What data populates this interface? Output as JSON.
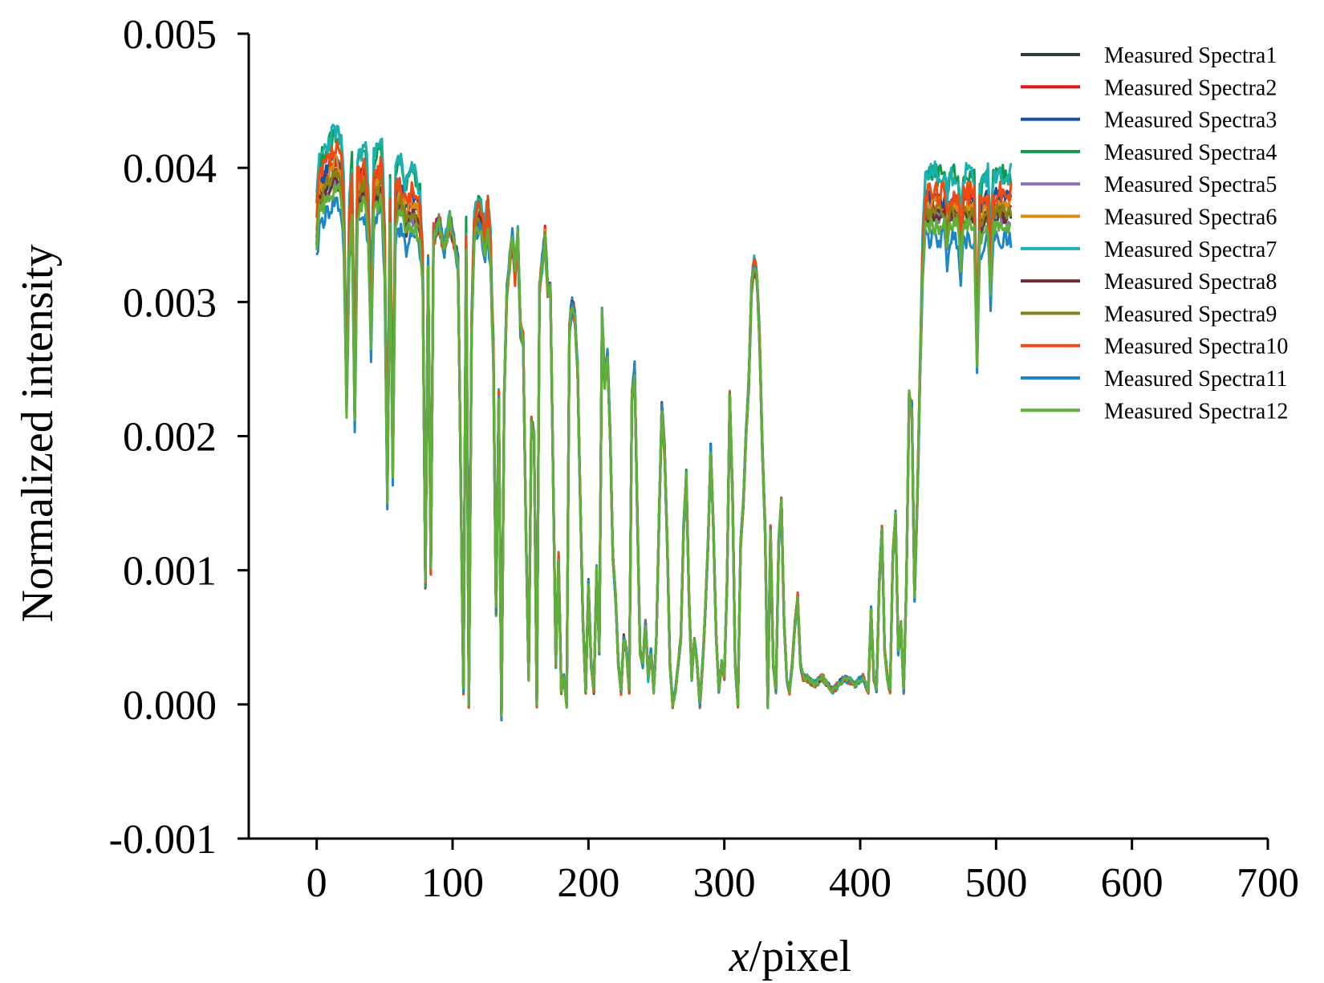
{
  "chart_data": {
    "type": "line",
    "xlabel_italic": "x",
    "xlabel_rest": "/pixel",
    "ylabel": "Normalized intensity",
    "xlim": [
      -50,
      700
    ],
    "ylim": [
      -0.001,
      0.005
    ],
    "x_ticks": [
      0,
      100,
      200,
      300,
      400,
      500,
      600,
      700
    ],
    "x_tick_labels": [
      "0",
      "100",
      "200",
      "300",
      "400",
      "500",
      "600",
      "700"
    ],
    "y_ticks": [
      -0.001,
      0.0,
      0.001,
      0.002,
      0.003,
      0.004,
      0.005
    ],
    "y_tick_labels": [
      "-0.001",
      "0.000",
      "0.001",
      "0.002",
      "0.003",
      "0.004",
      "0.005"
    ],
    "grid": false,
    "legend_position": "top-right",
    "x_step": 1,
    "x_start": 0,
    "x_end": 511,
    "base_profile": [
      [
        0,
        0.0034
      ],
      [
        2,
        0.0037
      ],
      [
        8,
        0.0038
      ],
      [
        14,
        0.0039
      ],
      [
        18,
        0.0038
      ],
      [
        20,
        0.0035
      ],
      [
        22,
        0.0022
      ],
      [
        24,
        0.0034
      ],
      [
        26,
        0.0037
      ],
      [
        28,
        0.0021
      ],
      [
        30,
        0.0037
      ],
      [
        36,
        0.0038
      ],
      [
        38,
        0.0035
      ],
      [
        40,
        0.0027
      ],
      [
        42,
        0.0037
      ],
      [
        48,
        0.0038
      ],
      [
        50,
        0.0033
      ],
      [
        52,
        0.0015
      ],
      [
        54,
        0.0036
      ],
      [
        56,
        0.0017
      ],
      [
        58,
        0.0036
      ],
      [
        62,
        0.0037
      ],
      [
        66,
        0.0035
      ],
      [
        68,
        0.0036
      ],
      [
        72,
        0.0036
      ],
      [
        76,
        0.0035
      ],
      [
        78,
        0.0032
      ],
      [
        80,
        0.0009
      ],
      [
        82,
        0.0033
      ],
      [
        84,
        0.001
      ],
      [
        86,
        0.0035
      ],
      [
        90,
        0.0036
      ],
      [
        94,
        0.0034
      ],
      [
        98,
        0.0036
      ],
      [
        100,
        0.0035
      ],
      [
        104,
        0.0033
      ],
      [
        106,
        0.0017
      ],
      [
        108,
        0.0001
      ],
      [
        110,
        0.0034
      ],
      [
        112,
        0.0
      ],
      [
        114,
        0.0028
      ],
      [
        116,
        0.0035
      ],
      [
        120,
        0.0036
      ],
      [
        124,
        0.0034
      ],
      [
        126,
        0.0036
      ],
      [
        128,
        0.0033
      ],
      [
        130,
        0.0026
      ],
      [
        132,
        0.0007
      ],
      [
        134,
        0.0023
      ],
      [
        136,
        -0.0001
      ],
      [
        138,
        0.0023
      ],
      [
        140,
        0.0031
      ],
      [
        144,
        0.0035
      ],
      [
        146,
        0.0032
      ],
      [
        148,
        0.0035
      ],
      [
        150,
        0.0028
      ],
      [
        152,
        0.0027
      ],
      [
        154,
        0.0013
      ],
      [
        156,
        0.0002
      ],
      [
        158,
        0.0021
      ],
      [
        160,
        0.002
      ],
      [
        162,
        0.0
      ],
      [
        164,
        0.0031
      ],
      [
        166,
        0.0033
      ],
      [
        168,
        0.0035
      ],
      [
        170,
        0.0031
      ],
      [
        172,
        0.0031
      ],
      [
        174,
        0.0017
      ],
      [
        176,
        0.0003
      ],
      [
        178,
        0.0011
      ],
      [
        180,
        0.0001
      ],
      [
        182,
        0.0002
      ],
      [
        184,
        0.0
      ],
      [
        186,
        0.0028
      ],
      [
        188,
        0.003
      ],
      [
        190,
        0.0029
      ],
      [
        192,
        0.0025
      ],
      [
        194,
        0.0015
      ],
      [
        196,
        0.0006
      ],
      [
        198,
        0.0001
      ],
      [
        200,
        0.0009
      ],
      [
        202,
        0.0003
      ],
      [
        204,
        0.0001
      ],
      [
        206,
        0.001
      ],
      [
        208,
        0.0004
      ],
      [
        210,
        0.0029
      ],
      [
        212,
        0.0024
      ],
      [
        214,
        0.0026
      ],
      [
        216,
        0.002
      ],
      [
        218,
        0.0011
      ],
      [
        220,
        0.0008
      ],
      [
        222,
        0.0003
      ],
      [
        224,
        0.0001
      ],
      [
        226,
        0.0005
      ],
      [
        228,
        0.0004
      ],
      [
        230,
        0.0001
      ],
      [
        232,
        0.0023
      ],
      [
        234,
        0.0025
      ],
      [
        236,
        0.0014
      ],
      [
        238,
        0.0004
      ],
      [
        240,
        0.0003
      ],
      [
        242,
        0.0006
      ],
      [
        244,
        0.0002
      ],
      [
        246,
        0.0004
      ],
      [
        248,
        0.0001
      ],
      [
        250,
        0.0005
      ],
      [
        252,
        0.0014
      ],
      [
        254,
        0.0022
      ],
      [
        256,
        0.0019
      ],
      [
        258,
        0.0012
      ],
      [
        260,
        0.0003
      ],
      [
        262,
        0.0
      ],
      [
        264,
        0.0001
      ],
      [
        266,
        0.0003
      ],
      [
        268,
        0.0005
      ],
      [
        270,
        0.0013
      ],
      [
        272,
        0.0017
      ],
      [
        274,
        0.0008
      ],
      [
        276,
        0.0002
      ],
      [
        278,
        0.0005
      ],
      [
        280,
        0.0003
      ],
      [
        282,
        0.0
      ],
      [
        284,
        0.0003
      ],
      [
        286,
        0.0007
      ],
      [
        288,
        0.0012
      ],
      [
        290,
        0.0019
      ],
      [
        292,
        0.0013
      ],
      [
        294,
        0.0005
      ],
      [
        296,
        0.0001
      ],
      [
        298,
        0.0003
      ],
      [
        300,
        0.0002
      ],
      [
        302,
        0.0009
      ],
      [
        304,
        0.0023
      ],
      [
        306,
        0.0016
      ],
      [
        308,
        0.0003
      ],
      [
        310,
        0.0
      ],
      [
        312,
        0.0012
      ],
      [
        314,
        0.0015
      ],
      [
        316,
        0.002
      ],
      [
        318,
        0.0024
      ],
      [
        320,
        0.0031
      ],
      [
        322,
        0.0033
      ],
      [
        324,
        0.0032
      ],
      [
        326,
        0.0027
      ],
      [
        328,
        0.0019
      ],
      [
        330,
        0.0013
      ],
      [
        332,
        0.0
      ],
      [
        334,
        0.0013
      ],
      [
        336,
        0.0003
      ],
      [
        338,
        0.0001
      ],
      [
        340,
        0.0012
      ],
      [
        342,
        0.0015
      ],
      [
        344,
        0.0006
      ],
      [
        346,
        0.0002
      ],
      [
        348,
        0.0001
      ],
      [
        350,
        0.0003
      ],
      [
        352,
        0.0006
      ],
      [
        354,
        0.0008
      ],
      [
        356,
        0.0003
      ],
      [
        358,
        0.0002
      ],
      [
        360,
        0.0002
      ],
      [
        366,
        0.00015
      ],
      [
        372,
        0.0002
      ],
      [
        380,
        0.0001
      ],
      [
        388,
        0.0002
      ],
      [
        396,
        0.00015
      ],
      [
        402,
        0.0002
      ],
      [
        406,
        0.0001
      ],
      [
        408,
        0.0007
      ],
      [
        410,
        0.0002
      ],
      [
        412,
        0.0001
      ],
      [
        414,
        0.0009
      ],
      [
        416,
        0.0013
      ],
      [
        418,
        0.0004
      ],
      [
        420,
        0.0002
      ],
      [
        422,
        0.0001
      ],
      [
        424,
        0.0011
      ],
      [
        426,
        0.0014
      ],
      [
        428,
        0.0004
      ],
      [
        430,
        0.0006
      ],
      [
        432,
        0.0001
      ],
      [
        434,
        0.0009
      ],
      [
        436,
        0.0023
      ],
      [
        438,
        0.0022
      ],
      [
        440,
        0.0008
      ],
      [
        442,
        0.0015
      ],
      [
        444,
        0.0024
      ],
      [
        446,
        0.0033
      ],
      [
        448,
        0.0036
      ],
      [
        456,
        0.0036
      ],
      [
        462,
        0.0036
      ],
      [
        464,
        0.0034
      ],
      [
        466,
        0.0036
      ],
      [
        472,
        0.0036
      ],
      [
        474,
        0.0033
      ],
      [
        476,
        0.0036
      ],
      [
        484,
        0.0036
      ],
      [
        486,
        0.0025
      ],
      [
        488,
        0.0035
      ],
      [
        494,
        0.0036
      ],
      [
        496,
        0.0031
      ],
      [
        498,
        0.0036
      ],
      [
        511,
        0.0036
      ]
    ],
    "plateau_sensitivity": [
      [
        0,
        1.0
      ],
      [
        76,
        1.0
      ],
      [
        80,
        0.0
      ],
      [
        108,
        0.0
      ],
      [
        110,
        0.5
      ],
      [
        130,
        0.5
      ],
      [
        132,
        0.0
      ],
      [
        442,
        0.0
      ],
      [
        448,
        1.0
      ],
      [
        511,
        1.0
      ]
    ],
    "series": [
      {
        "name": "Measured Spectra1",
        "color": "#2f3f3a",
        "gain": 0.015,
        "seed": 3,
        "noise": 6e-05
      },
      {
        "name": "Measured Spectra2",
        "color": "#e8161d",
        "gain": 0.04,
        "seed": 7,
        "noise": 8e-05
      },
      {
        "name": "Measured Spectra3",
        "color": "#1550a3",
        "gain": 0.05,
        "seed": 11,
        "noise": 8e-05
      },
      {
        "name": "Measured Spectra4",
        "color": "#0d9b48",
        "gain": 0.095,
        "seed": 13,
        "noise": 9e-05
      },
      {
        "name": "Measured Spectra5",
        "color": "#8a70b3",
        "gain": 0.005,
        "seed": 17,
        "noise": 6e-05
      },
      {
        "name": "Measured Spectra6",
        "color": "#d98b12",
        "gain": 0.035,
        "seed": 19,
        "noise": 7e-05
      },
      {
        "name": "Measured Spectra7",
        "color": "#1ab0ae",
        "gain": 0.1,
        "seed": 23,
        "noise": 0.0001
      },
      {
        "name": "Measured Spectra8",
        "color": "#6b2d38",
        "gain": 0.01,
        "seed": 29,
        "noise": 6e-05
      },
      {
        "name": "Measured Spectra9",
        "color": "#858216",
        "gain": 0.02,
        "seed": 31,
        "noise": 6e-05
      },
      {
        "name": "Measured Spectra10",
        "color": "#ee4a12",
        "gain": 0.06,
        "seed": 37,
        "noise": 0.0001
      },
      {
        "name": "Measured Spectra11",
        "color": "#1d86c9",
        "gain": -0.035,
        "seed": 41,
        "noise": 8e-05
      },
      {
        "name": "Measured Spectra12",
        "color": "#62ae3b",
        "gain": -0.01,
        "seed": 43,
        "noise": 7e-05
      }
    ]
  }
}
